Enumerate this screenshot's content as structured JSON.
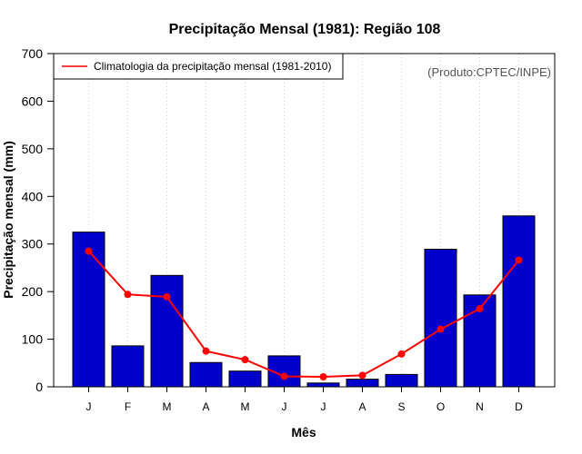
{
  "chart_data": {
    "type": "bar",
    "title": "Precipitação Mensal (1981): Região 108",
    "xlabel": "Mês",
    "ylabel": "Precipitação mensal (mm)",
    "ylim": [
      0,
      700
    ],
    "yticks": [
      0,
      100,
      200,
      300,
      400,
      500,
      600,
      700
    ],
    "categories": [
      "J",
      "F",
      "M",
      "A",
      "M",
      "J",
      "J",
      "A",
      "S",
      "O",
      "N",
      "D"
    ],
    "series": [
      {
        "name": "Precipitação mensal (1981)",
        "kind": "bar",
        "color": "#0000CD",
        "values": [
          325,
          86,
          234,
          51,
          33,
          65,
          8,
          16,
          26,
          289,
          193,
          359
        ]
      },
      {
        "name": "Climatologia da precipitação mensal (1981-2010)",
        "kind": "line",
        "color": "#FF0000",
        "values": [
          285,
          194,
          189,
          75,
          57,
          22,
          21,
          24,
          69,
          121,
          164,
          266
        ]
      }
    ],
    "legend": {
      "position": "top-left",
      "entries": [
        "Climatologia da precipitação mensal (1981-2010)"
      ]
    },
    "annotations": [
      "(Produto:CPTEC/INPE)"
    ],
    "grid": "vertical dotted"
  }
}
